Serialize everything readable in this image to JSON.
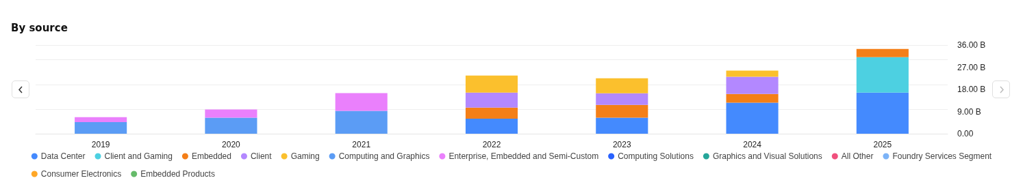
{
  "chart_data": {
    "type": "bar",
    "title": "By source",
    "stacked": true,
    "grid": "y",
    "legend": "bottom",
    "categories": [
      "2019",
      "2020",
      "2021",
      "2022",
      "2023",
      "2024",
      "2025"
    ],
    "ylim": [
      0,
      36
    ],
    "yticks": [
      {
        "value": 0,
        "label": "0.00"
      },
      {
        "value": 9,
        "label": "9.00 B"
      },
      {
        "value": 18,
        "label": "18.00 B"
      },
      {
        "value": 27,
        "label": "27.00 B"
      },
      {
        "value": 36,
        "label": "36.00 B"
      }
    ],
    "series": [
      {
        "name": "Data Center",
        "color": "#448afe",
        "values": [
          null,
          null,
          null,
          6.1,
          6.5,
          12.6,
          16.7
        ]
      },
      {
        "name": "Client and Gaming",
        "color": "#4dd0e1",
        "values": [
          null,
          null,
          null,
          null,
          null,
          null,
          14.4
        ]
      },
      {
        "name": "Embedded",
        "color": "#f47f18",
        "values": [
          null,
          null,
          null,
          4.5,
          5.2,
          3.5,
          3.3
        ]
      },
      {
        "name": "Client",
        "color": "#b388ff",
        "values": [
          null,
          null,
          null,
          6.1,
          4.7,
          7.0,
          null
        ]
      },
      {
        "name": "Gaming",
        "color": "#fbc02d",
        "values": [
          null,
          null,
          null,
          6.9,
          6.1,
          2.5,
          null
        ]
      },
      {
        "name": "Computing and Graphics",
        "color": "#5b9cf5",
        "values": [
          4.7,
          6.5,
          9.3,
          null,
          null,
          null,
          null
        ]
      },
      {
        "name": "Enterprise, Embedded and Semi-Custom",
        "color": "#ea80fc",
        "values": [
          2.0,
          3.3,
          7.2,
          null,
          null,
          null,
          null
        ]
      },
      {
        "name": "Computing Solutions",
        "color": "#2962ff",
        "values": [
          null,
          null,
          null,
          null,
          null,
          null,
          null
        ]
      },
      {
        "name": "Graphics and Visual Solutions",
        "color": "#26a69a",
        "values": [
          null,
          null,
          null,
          null,
          null,
          null,
          null
        ]
      },
      {
        "name": "All Other",
        "color": "#f0507d",
        "values": [
          null,
          null,
          null,
          null,
          null,
          null,
          null
        ]
      },
      {
        "name": "Foundry Services Segment",
        "color": "#7cb3f7",
        "values": [
          null,
          null,
          null,
          null,
          null,
          null,
          null
        ]
      },
      {
        "name": "Consumer Electronics",
        "color": "#ffa726",
        "values": [
          null,
          null,
          null,
          null,
          null,
          null,
          null
        ]
      },
      {
        "name": "Embedded Products",
        "color": "#66bb6a",
        "values": [
          null,
          null,
          null,
          null,
          null,
          null,
          null
        ]
      }
    ]
  }
}
